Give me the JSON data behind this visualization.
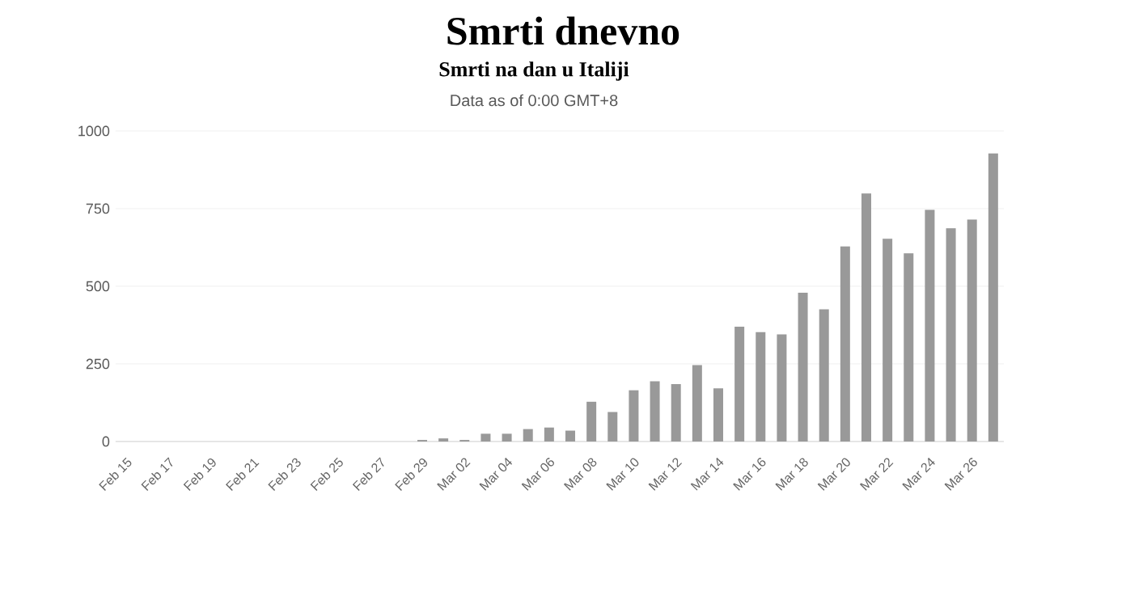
{
  "chart_data": {
    "type": "bar",
    "title": "Smrti dnevno",
    "subtitle": "Smrti na dan u Italiji",
    "annotations": [
      "Data as of 0:00 GMT+8"
    ],
    "categories": [
      "Feb 15",
      null,
      "Feb 17",
      null,
      "Feb 19",
      null,
      "Feb 21",
      null,
      "Feb 23",
      null,
      "Feb 25",
      null,
      "Feb 27",
      null,
      "Feb 29",
      null,
      "Mar 02",
      null,
      "Mar 04",
      null,
      "Mar 06",
      null,
      "Mar 08",
      null,
      "Mar 10",
      null,
      "Mar 12",
      null,
      "Mar 14",
      null,
      "Mar 16",
      null,
      "Mar 18",
      null,
      "Mar 20",
      null,
      "Mar 22",
      null,
      "Mar 24",
      null,
      "Mar 26",
      null
    ],
    "values": [
      0,
      0,
      0,
      0,
      0,
      0,
      0,
      0,
      0,
      0,
      0,
      0,
      0,
      0,
      5,
      10,
      5,
      25,
      25,
      40,
      45,
      35,
      128,
      95,
      165,
      194,
      185,
      246,
      171,
      370,
      352,
      345,
      479,
      426,
      628,
      799,
      653,
      606,
      746,
      687,
      715,
      928
    ],
    "color": "#999999",
    "ylim": [
      0,
      1000
    ],
    "yticks": [
      0,
      250,
      500,
      750,
      1000
    ],
    "grid": "y"
  }
}
